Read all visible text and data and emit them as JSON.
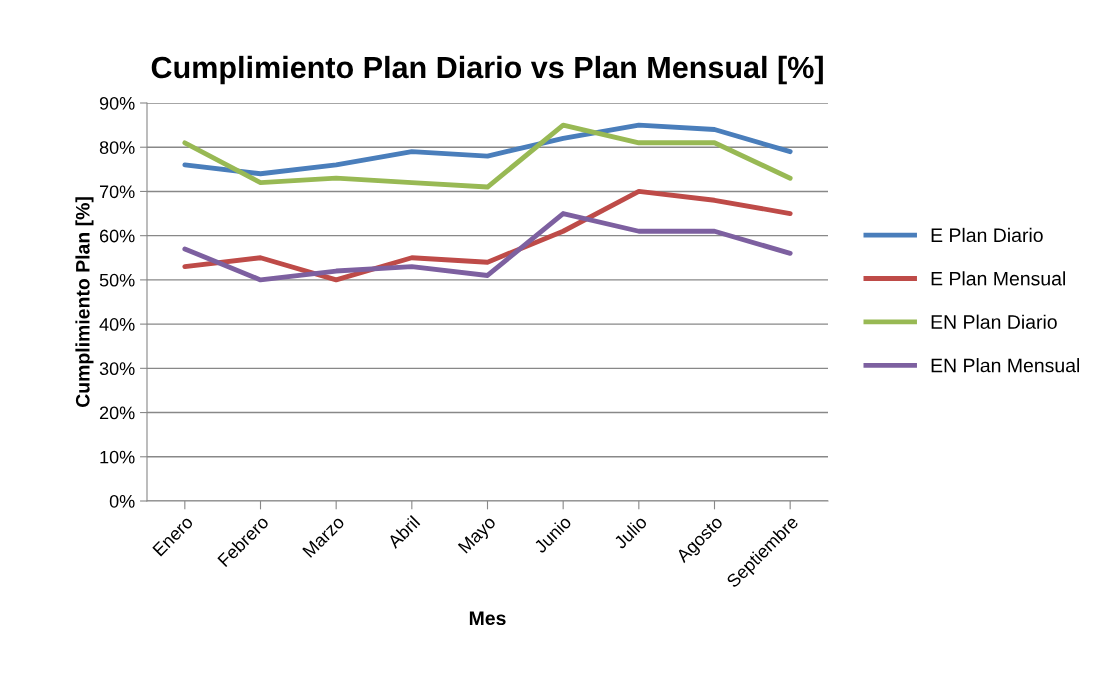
{
  "chart_data": {
    "type": "line",
    "title": "Cumplimiento Plan Diario vs Plan Mensual [%]",
    "xlabel": "Mes",
    "ylabel": "Cumplimiento Plan [%]",
    "categories": [
      "Enero",
      "Febrero",
      "Marzo",
      "Abril",
      "Mayo",
      "Junio",
      "Julio",
      "Agosto",
      "Septiembre"
    ],
    "series": [
      {
        "name": "E Plan Diario",
        "color": "#4a7ebb",
        "values": [
          76,
          74,
          76,
          79,
          78,
          82,
          85,
          84,
          79
        ]
      },
      {
        "name": "E Plan Mensual",
        "color": "#be4b48",
        "values": [
          53,
          55,
          50,
          55,
          54,
          61,
          70,
          68,
          65
        ]
      },
      {
        "name": "EN Plan Diario",
        "color": "#98b954",
        "values": [
          81,
          72,
          73,
          72,
          71,
          85,
          81,
          81,
          73
        ]
      },
      {
        "name": "EN Plan Mensual",
        "color": "#7d60a0",
        "values": [
          57,
          50,
          52,
          53,
          51,
          65,
          61,
          61,
          56
        ]
      }
    ],
    "ylim": [
      0,
      90
    ],
    "yticks": [
      {
        "value": 0,
        "label": "0%"
      },
      {
        "value": 10,
        "label": "10%"
      },
      {
        "value": 20,
        "label": "20%"
      },
      {
        "value": 30,
        "label": "30%"
      },
      {
        "value": 40,
        "label": "40%"
      },
      {
        "value": 50,
        "label": "50%"
      },
      {
        "value": 60,
        "label": "60%"
      },
      {
        "value": 70,
        "label": "70%"
      },
      {
        "value": 80,
        "label": "80%"
      },
      {
        "value": 90,
        "label": "90%"
      }
    ],
    "grid": "y",
    "legend": "right",
    "marker": "none",
    "line_style": "solid"
  }
}
